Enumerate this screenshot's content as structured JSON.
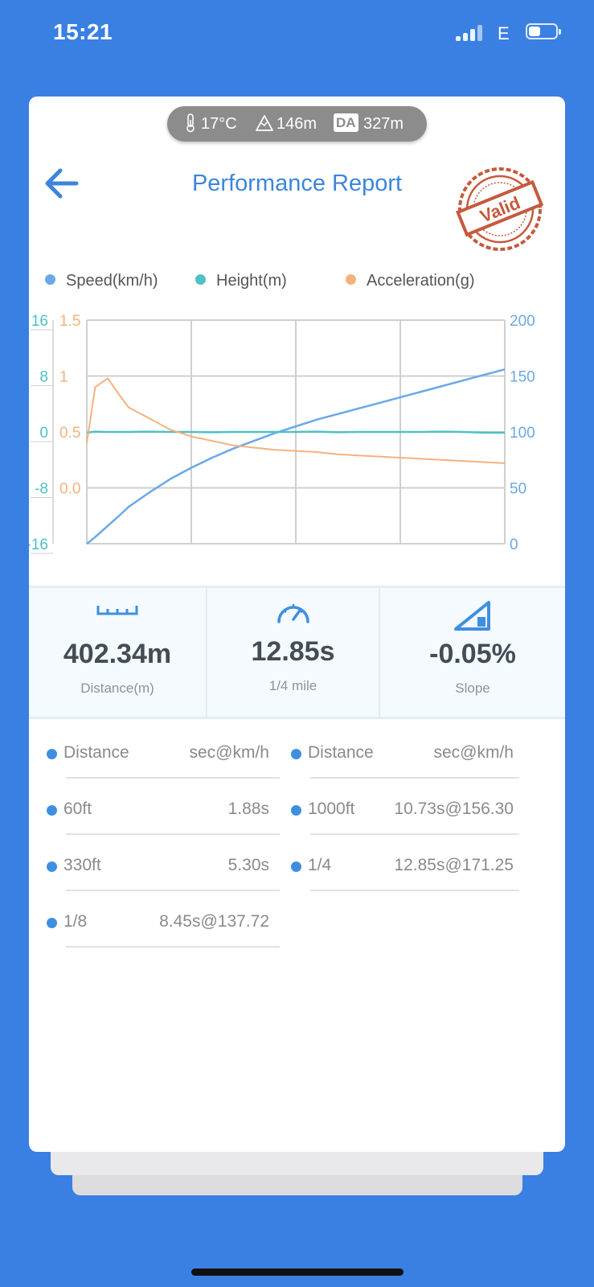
{
  "status_bar": {
    "time": "15:21",
    "network": "E"
  },
  "environment": {
    "temperature": "17°C",
    "altitude": "146m",
    "da_badge": "DA",
    "density_altitude": "327m"
  },
  "header": {
    "title": "Performance Report",
    "stamp_text": "Valid"
  },
  "colors": {
    "background": "#3a80e2",
    "speed": "#6aa8e8",
    "height": "#4ec1c4",
    "acceleration": "#f4b27e",
    "stamp": "#c45a3c",
    "title": "#3d85d8"
  },
  "legend": [
    {
      "label": "Speed(km/h)",
      "color": "#6aa8e8"
    },
    {
      "label": "Height(m)",
      "color": "#4ec1c4"
    },
    {
      "label": "Acceleration(g)",
      "color": "#f4b27e"
    }
  ],
  "chart_data": {
    "type": "line",
    "grid": true,
    "axes": {
      "height_axis": {
        "ticks": [
          "16",
          "8",
          "0",
          "-8",
          "-16"
        ],
        "range": [
          -16,
          16
        ],
        "color": "#4ec1c4"
      },
      "acceleration_axis": {
        "ticks": [
          "1.5",
          "1",
          "0.5",
          "0.0"
        ],
        "range": [
          -0.5,
          1.5
        ],
        "color": "#f4b27e"
      },
      "speed_axis": {
        "ticks": [
          "200",
          "150",
          "100",
          "50",
          "0"
        ],
        "range": [
          0,
          200
        ],
        "color": "#6aa8e8"
      }
    },
    "x": [
      0,
      0.02,
      0.05,
      0.08,
      0.1,
      0.15,
      0.2,
      0.25,
      0.3,
      0.35,
      0.4,
      0.45,
      0.5,
      0.55,
      0.6,
      0.65,
      0.7,
      0.75,
      0.8,
      0.85,
      0.9,
      0.95,
      1.0
    ],
    "series": [
      {
        "name": "Speed(km/h)",
        "axis": "speed_axis",
        "values": [
          0,
          6,
          16,
          26,
          33,
          46,
          58,
          68,
          77,
          85,
          92,
          99,
          105,
          111,
          116,
          121,
          126,
          131,
          136,
          141,
          146,
          151,
          156
        ]
      },
      {
        "name": "Height(m)",
        "axis": "height_axis",
        "values": [
          -0.1,
          0.05,
          0.0,
          0.0,
          0.0,
          0.05,
          0.0,
          0.0,
          -0.05,
          0.0,
          0.0,
          0.0,
          0.0,
          0.05,
          -0.05,
          0.0,
          0.0,
          0.0,
          0.0,
          0.05,
          0.0,
          -0.1,
          -0.1
        ]
      },
      {
        "name": "Acceleration(g)",
        "axis": "acceleration_axis",
        "values": [
          0.4,
          0.9,
          0.98,
          0.82,
          0.72,
          0.62,
          0.52,
          0.46,
          0.42,
          0.38,
          0.36,
          0.34,
          0.33,
          0.32,
          0.3,
          0.29,
          0.28,
          0.27,
          0.26,
          0.25,
          0.24,
          0.23,
          0.22
        ]
      }
    ]
  },
  "stats": [
    {
      "icon": "ruler-icon",
      "value": "402.34m",
      "label": "Distance(m)"
    },
    {
      "icon": "speedometer-icon",
      "value": "12.85s",
      "label": "1/4 mile"
    },
    {
      "icon": "slope-icon",
      "value": "-0.05%",
      "label": "Slope"
    }
  ],
  "splits": {
    "header": {
      "label": "Distance",
      "value": "sec@km/h"
    },
    "left": [
      {
        "label": "60ft",
        "value": "1.88s"
      },
      {
        "label": "330ft",
        "value": "5.30s"
      },
      {
        "label": "1/8",
        "value": "8.45s@137.72"
      }
    ],
    "right": [
      {
        "label": "1000ft",
        "value": "10.73s@156.30"
      },
      {
        "label": "1/4",
        "value": "12.85s@171.25"
      }
    ]
  }
}
